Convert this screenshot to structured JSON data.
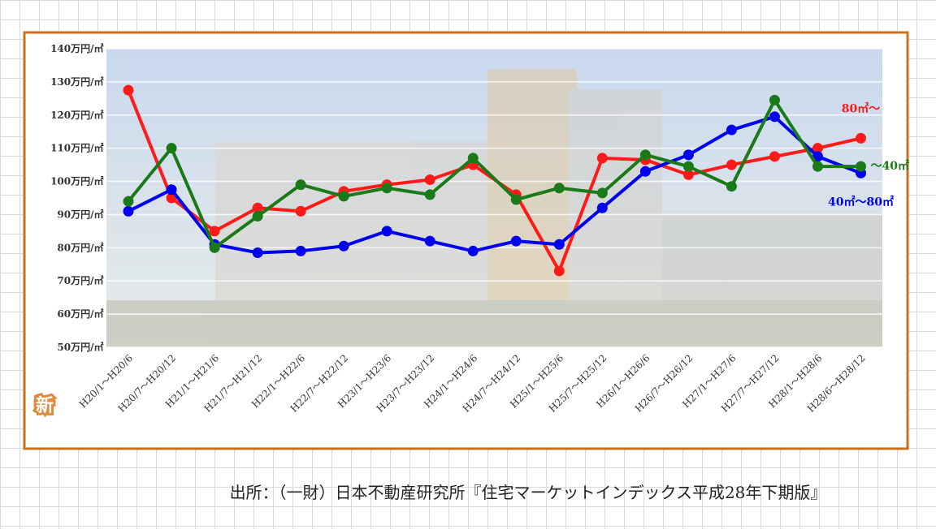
{
  "chart_data": {
    "type": "line",
    "categories": [
      "H20/1～H20/6",
      "H20/7～H20/12",
      "H21/1～H21/6",
      "H21/7～H21/12",
      "H22/1～H22/6",
      "H22/7～H22/12",
      "H23/1～H23/6",
      "H23/7～H23/12",
      "H24/1～H24/6",
      "H24/7～H24/12",
      "H25/1～H25/6",
      "H25/7～H25/12",
      "H26/1～H26/6",
      "H26/7～H26/12",
      "H27/1～H27/6",
      "H27/7～H27/12",
      "H28/1～H28/6",
      "H28/6～H28/12"
    ],
    "series": [
      {
        "name": "80㎡～",
        "color": "#ff1a1a",
        "values": [
          127.5,
          95,
          85,
          92,
          91,
          97,
          99,
          100.5,
          105,
          96,
          73,
          107,
          106.5,
          102,
          105,
          107.5,
          110,
          113
        ]
      },
      {
        "name": "40㎡～80㎡",
        "color": "#0000ee",
        "values": [
          91,
          97.5,
          81,
          78.5,
          79,
          80.5,
          85,
          82,
          79,
          82,
          81,
          92,
          103,
          108,
          115.5,
          119.5,
          107.5,
          102.5
        ]
      },
      {
        "name": "～40㎡",
        "color": "#1a7a1a",
        "values": [
          94,
          110,
          80,
          89.5,
          99,
          95.5,
          98,
          96,
          107,
          94.5,
          98,
          96.5,
          108,
          104.5,
          98.5,
          124.5,
          104.5,
          104.5
        ]
      }
    ],
    "ylim": [
      50,
      140
    ],
    "yticks": [
      {
        "value": 50,
        "label": "50万円/㎡"
      },
      {
        "value": 60,
        "label": "60万円/㎡"
      },
      {
        "value": 70,
        "label": "70万円/㎡"
      },
      {
        "value": 80,
        "label": "80万円/㎡"
      },
      {
        "value": 90,
        "label": "90万円/㎡"
      },
      {
        "value": 100,
        "label": "100万円/㎡"
      },
      {
        "value": 110,
        "label": "110万円/㎡"
      },
      {
        "value": 120,
        "label": "120万円/㎡"
      },
      {
        "value": 130,
        "label": "130万円/㎡"
      },
      {
        "value": 140,
        "label": "140万円/㎡"
      }
    ],
    "grid": true,
    "badge": "新",
    "source": "出所：（一財）日本不動産研究所『住宅マーケットインデックス平成28年下期版』"
  }
}
